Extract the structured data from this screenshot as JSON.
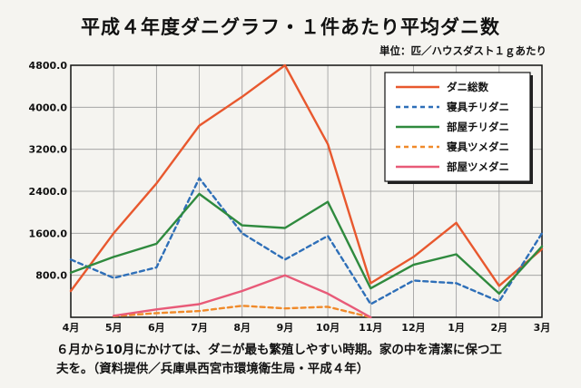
{
  "title": "平成４年度ダニグラフ・１件あたり平均ダニ数",
  "unit_label": "単位：匹／ハウスダスト１ｇあたり",
  "caption": {
    "line1": "６月から10月にかけては、ダニが最も繁殖しやすい時期。家の中を清潔に保つ工",
    "line2": "夫を。（資料提供／兵庫県西宮市環境衛生局・平成４年）"
  },
  "chart_data": {
    "type": "line",
    "categories": [
      "4月",
      "5月",
      "6月",
      "7月",
      "8月",
      "9月",
      "10月",
      "11月",
      "12月",
      "1月",
      "2月",
      "3月"
    ],
    "y_ticks": [
      "800.0",
      "1600.0",
      "2400.0",
      "3200.0",
      "4000.0",
      "4800.0"
    ],
    "ylim": [
      0,
      4800
    ],
    "grid": true,
    "legend_position": "top-right",
    "series": [
      {
        "name": "ダニ総数",
        "color": "#e8582e",
        "dash": "solid",
        "values": [
          500,
          1600,
          2550,
          3650,
          4200,
          4800,
          3300,
          650,
          1150,
          1800,
          600,
          1300
        ]
      },
      {
        "name": "寝具チリダニ",
        "color": "#2e6fb8",
        "dash": "dashed",
        "values": [
          1100,
          750,
          950,
          2650,
          1600,
          1100,
          1550,
          250,
          700,
          650,
          300,
          1600
        ]
      },
      {
        "name": "部屋チリダニ",
        "color": "#2f8a3e",
        "dash": "solid",
        "values": [
          850,
          1150,
          1400,
          2350,
          1750,
          1700,
          2200,
          550,
          1000,
          1200,
          450,
          1350
        ]
      },
      {
        "name": "寝具ツメダニ",
        "color": "#f08a2a",
        "dash": "dashed",
        "values": [
          null,
          20,
          80,
          120,
          220,
          170,
          200,
          0,
          null,
          null,
          null,
          null
        ]
      },
      {
        "name": "部屋ツメダニ",
        "color": "#e85a78",
        "dash": "solid",
        "values": [
          null,
          30,
          150,
          250,
          500,
          800,
          450,
          0,
          null,
          null,
          null,
          null
        ]
      }
    ]
  }
}
